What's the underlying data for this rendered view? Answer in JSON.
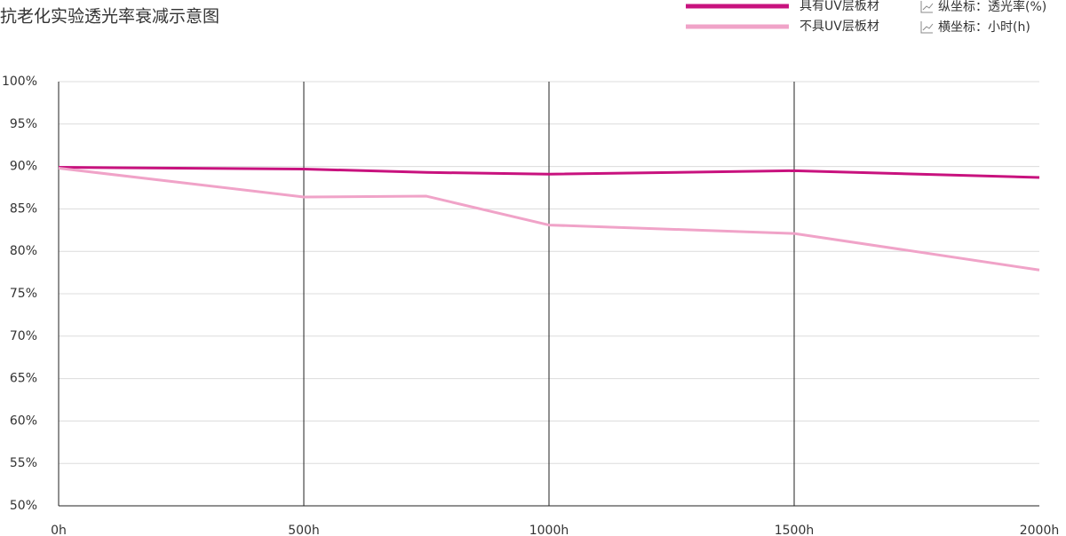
{
  "chart_data": {
    "type": "line",
    "title": "抗老化实验透光率衰减示意图",
    "x": [
      0,
      500,
      750,
      1000,
      1500,
      2000
    ],
    "series": [
      {
        "name": "具有UV层板材",
        "color": "#c8127e",
        "values": [
          89.9,
          89.7,
          89.3,
          89.1,
          89.5,
          88.7
        ]
      },
      {
        "name": "不具UV层板材",
        "color": "#f0a3c8",
        "values": [
          89.8,
          86.4,
          86.5,
          83.1,
          82.1,
          77.8
        ]
      }
    ],
    "annotations": [
      "纵坐标：透光率(%)",
      "横坐标：小时(h)"
    ],
    "xlim": [
      0,
      2000
    ],
    "xticks": [
      {
        "value": 0,
        "label": "0h"
      },
      {
        "value": 500,
        "label": "500h"
      },
      {
        "value": 1000,
        "label": "1000h"
      },
      {
        "value": 1500,
        "label": "1500h"
      },
      {
        "value": 2000,
        "label": "2000h"
      }
    ],
    "ylim": [
      50,
      100
    ],
    "yticks": [
      {
        "value": 50,
        "label": "50%"
      },
      {
        "value": 55,
        "label": "55%"
      },
      {
        "value": 60,
        "label": "60%"
      },
      {
        "value": 65,
        "label": "65%"
      },
      {
        "value": 70,
        "label": "70%"
      },
      {
        "value": 75,
        "label": "75%"
      },
      {
        "value": 80,
        "label": "80%"
      },
      {
        "value": 85,
        "label": "85%"
      },
      {
        "value": 90,
        "label": "90%"
      },
      {
        "value": 95,
        "label": "95%"
      },
      {
        "value": 100,
        "label": "100%"
      }
    ],
    "grid": true,
    "legend": "top-right"
  }
}
